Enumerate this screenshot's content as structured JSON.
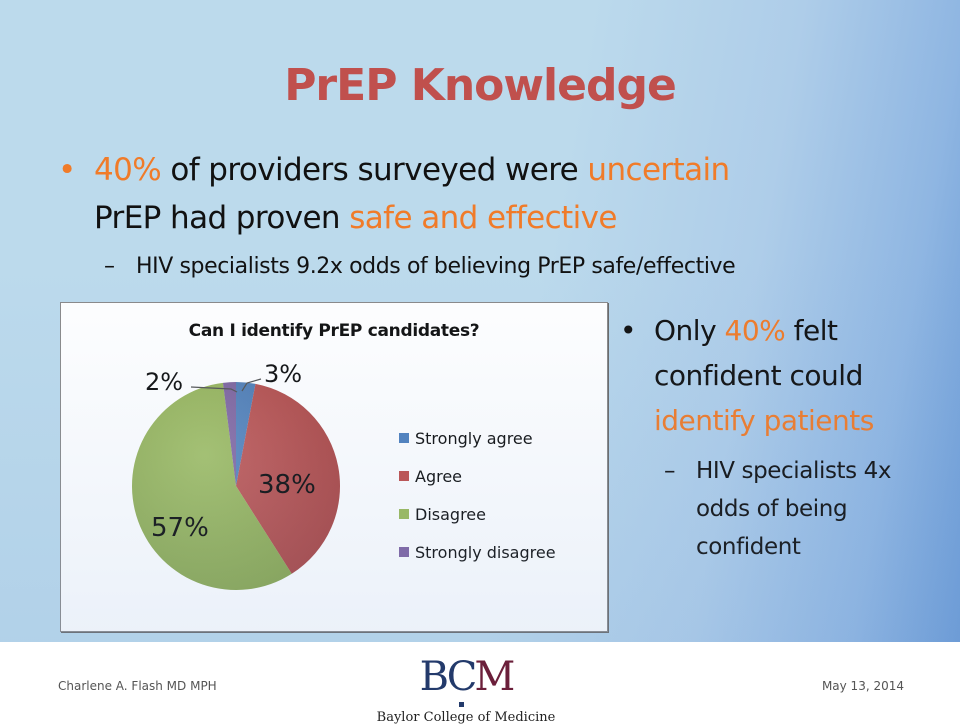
{
  "slide": {
    "title": "PrEP Knowledge",
    "bullet1": {
      "marker": "•",
      "parts": {
        "p1": "40%",
        "p2": " of providers surveyed were ",
        "p3": "uncertain",
        "p4": "PrEP had proven ",
        "p5": "safe and effective"
      },
      "sub": {
        "marker": "–",
        "text": "HIV specialists 9.2x odds of believing PrEP safe/effective"
      }
    },
    "bullet2": {
      "marker": "•",
      "parts": {
        "p1": "Only ",
        "p2": "40%",
        "p3": " felt",
        "p4": "confident could",
        "p5": "identify patients"
      },
      "sub": {
        "marker": "–",
        "line1": "HIV specialists 4x",
        "line2": "odds of being",
        "line3": "confident"
      }
    },
    "colors": {
      "title": "#c0504d",
      "accent": "#f07b29",
      "strongly_agree": "#4f81bd",
      "agree": "#c0504d",
      "disagree": "#9bbb59",
      "strongly_disagree": "#8064a2"
    }
  },
  "chart_data": {
    "type": "pie",
    "title": "Can I identify PrEP candidates?",
    "categories": [
      "Strongly agree",
      "Agree",
      "Disagree",
      "Strongly disagree"
    ],
    "values": [
      3,
      38,
      57,
      2
    ],
    "labels": [
      "3%",
      "38%",
      "57%",
      "2%"
    ],
    "colors": [
      "#4f81bd",
      "#c0504d",
      "#9bbb59",
      "#8064a2"
    ],
    "legend_position": "right",
    "start_angle": "12 o'clock, clockwise"
  },
  "footer": {
    "presenter": "Charlene A. Flash  MD MPH",
    "date": "May 13, 2014",
    "logo": {
      "b": "B",
      "c": "C",
      "m": "M",
      "name": "Baylor College of Medicine"
    }
  }
}
